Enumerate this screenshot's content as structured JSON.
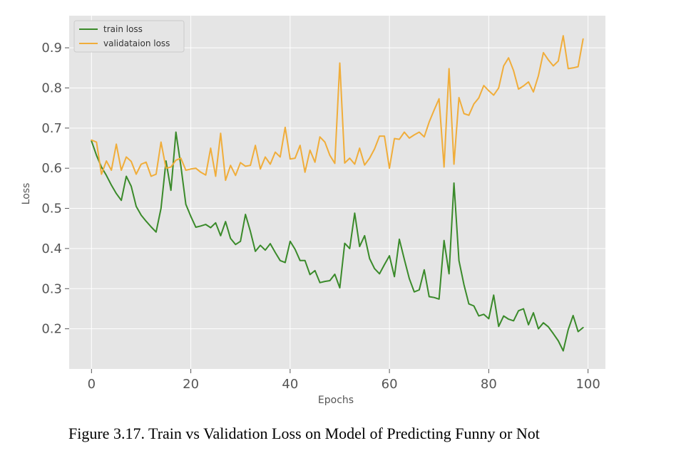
{
  "caption": "Figure 3.17. Train vs Validation Loss on Model of Predicting Funny or Not",
  "chart_data": {
    "type": "line",
    "title": "",
    "xlabel": "Epochs",
    "ylabel": "Loss",
    "xlim": [
      -4.5,
      103.5
    ],
    "ylim": [
      0.1,
      0.98
    ],
    "xticks": [
      0,
      20,
      40,
      60,
      80,
      100
    ],
    "yticks": [
      0.2,
      0.3,
      0.4,
      0.5,
      0.6,
      0.7,
      0.8,
      0.9
    ],
    "ytick_labels": [
      "0.2",
      "0.3",
      "0.4",
      "0.5",
      "0.6",
      "0.7",
      "0.8",
      "0.9"
    ],
    "grid": true,
    "legend_position": "top-left",
    "x": [
      0,
      1,
      2,
      3,
      4,
      5,
      6,
      7,
      8,
      9,
      10,
      11,
      12,
      13,
      14,
      15,
      16,
      17,
      18,
      19,
      20,
      21,
      22,
      23,
      24,
      25,
      26,
      27,
      28,
      29,
      30,
      31,
      32,
      33,
      34,
      35,
      36,
      37,
      38,
      39,
      40,
      41,
      42,
      43,
      44,
      45,
      46,
      47,
      48,
      49,
      50,
      51,
      52,
      53,
      54,
      55,
      56,
      57,
      58,
      59,
      60,
      61,
      62,
      63,
      64,
      65,
      66,
      67,
      68,
      69,
      70,
      71,
      72,
      73,
      74,
      75,
      76,
      77,
      78,
      79,
      80,
      81,
      82,
      83,
      84,
      85,
      86,
      87,
      88,
      89,
      90,
      91,
      92,
      93,
      94,
      95,
      96,
      97,
      98,
      99
    ],
    "series": [
      {
        "name": "train loss",
        "color": "#3a8a2a",
        "values": [
          0.668,
          0.632,
          0.603,
          0.582,
          0.558,
          0.537,
          0.52,
          0.58,
          0.555,
          0.505,
          0.483,
          0.468,
          0.454,
          0.441,
          0.5,
          0.618,
          0.545,
          0.69,
          0.605,
          0.51,
          0.48,
          0.453,
          0.456,
          0.46,
          0.452,
          0.464,
          0.432,
          0.467,
          0.425,
          0.41,
          0.418,
          0.485,
          0.443,
          0.393,
          0.408,
          0.396,
          0.412,
          0.39,
          0.37,
          0.365,
          0.418,
          0.398,
          0.37,
          0.37,
          0.335,
          0.345,
          0.315,
          0.318,
          0.32,
          0.336,
          0.302,
          0.413,
          0.4,
          0.488,
          0.405,
          0.432,
          0.375,
          0.35,
          0.337,
          0.36,
          0.382,
          0.33,
          0.423,
          0.373,
          0.325,
          0.292,
          0.297,
          0.347,
          0.28,
          0.278,
          0.274,
          0.42,
          0.337,
          0.563,
          0.37,
          0.31,
          0.262,
          0.257,
          0.232,
          0.236,
          0.225,
          0.284,
          0.206,
          0.232,
          0.224,
          0.22,
          0.245,
          0.25,
          0.21,
          0.24,
          0.2,
          0.215,
          0.205,
          0.188,
          0.17,
          0.145,
          0.198,
          0.233,
          0.193,
          0.203
        ]
      },
      {
        "name": "validataion loss",
        "color": "#f0ad3a",
        "values": [
          0.67,
          0.665,
          0.585,
          0.618,
          0.595,
          0.66,
          0.595,
          0.628,
          0.617,
          0.585,
          0.61,
          0.615,
          0.58,
          0.585,
          0.665,
          0.6,
          0.603,
          0.62,
          0.625,
          0.595,
          0.598,
          0.6,
          0.59,
          0.583,
          0.65,
          0.58,
          0.687,
          0.57,
          0.607,
          0.582,
          0.614,
          0.605,
          0.607,
          0.657,
          0.598,
          0.628,
          0.61,
          0.64,
          0.628,
          0.702,
          0.623,
          0.625,
          0.657,
          0.59,
          0.645,
          0.615,
          0.678,
          0.665,
          0.632,
          0.612,
          0.862,
          0.613,
          0.625,
          0.61,
          0.65,
          0.608,
          0.625,
          0.648,
          0.68,
          0.68,
          0.6,
          0.674,
          0.672,
          0.69,
          0.675,
          0.683,
          0.69,
          0.678,
          0.715,
          0.745,
          0.773,
          0.603,
          0.848,
          0.61,
          0.776,
          0.736,
          0.732,
          0.76,
          0.775,
          0.806,
          0.793,
          0.782,
          0.8,
          0.855,
          0.875,
          0.843,
          0.797,
          0.805,
          0.815,
          0.79,
          0.83,
          0.888,
          0.87,
          0.855,
          0.867,
          0.93,
          0.848,
          0.85,
          0.853,
          0.922
        ]
      }
    ]
  }
}
